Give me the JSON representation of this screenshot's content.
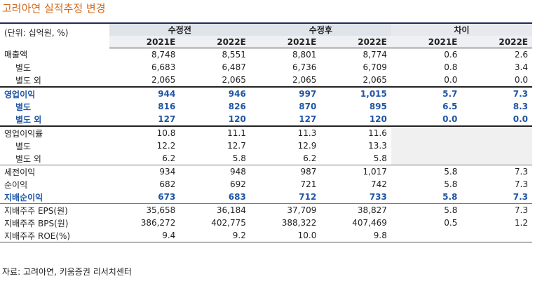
{
  "title": "고려아연 실적추정 변경",
  "unit_label": "(단위: 십억원, %)",
  "groups": [
    "수정전",
    "수정후",
    "차이"
  ],
  "years": [
    "2021E",
    "2022E",
    "2021E",
    "2022E",
    "2021E",
    "2022E"
  ],
  "rows": [
    {
      "label": "매출액",
      "values": [
        "8,748",
        "8,551",
        "8,801",
        "8,774",
        "0.6",
        "2.6"
      ]
    },
    {
      "label": "별도",
      "values": [
        "6,683",
        "6,487",
        "6,736",
        "6,709",
        "0.8",
        "3.4"
      ]
    },
    {
      "label": "별도 외",
      "values": [
        "2,065",
        "2,065",
        "2,065",
        "2,065",
        "0.0",
        "0.0"
      ]
    },
    {
      "label": "영업이익",
      "values": [
        "944",
        "946",
        "997",
        "1,015",
        "5.7",
        "7.3"
      ]
    },
    {
      "label": "별도",
      "values": [
        "816",
        "826",
        "870",
        "895",
        "6.5",
        "8.3"
      ]
    },
    {
      "label": "별도 외",
      "values": [
        "127",
        "120",
        "127",
        "120",
        "0.0",
        "0.0"
      ]
    },
    {
      "label": "영업이익률",
      "values": [
        "10.8",
        "11.1",
        "11.3",
        "11.6",
        "",
        ""
      ]
    },
    {
      "label": "별도",
      "values": [
        "12.2",
        "12.7",
        "12.9",
        "13.3",
        "",
        ""
      ]
    },
    {
      "label": "별도 외",
      "values": [
        "6.2",
        "5.8",
        "6.2",
        "5.8",
        "",
        ""
      ]
    },
    {
      "label": "세전이익",
      "values": [
        "934",
        "948",
        "987",
        "1,017",
        "5.8",
        "7.3"
      ]
    },
    {
      "label": "순이익",
      "values": [
        "682",
        "692",
        "721",
        "742",
        "5.8",
        "7.3"
      ]
    },
    {
      "label": "지배순이익",
      "values": [
        "673",
        "683",
        "712",
        "733",
        "5.8",
        "7.3"
      ]
    },
    {
      "label": "지배주주 EPS(원)",
      "values": [
        "35,658",
        "36,184",
        "37,709",
        "38,827",
        "5.8",
        "7.3"
      ]
    },
    {
      "label": "지배주주 BPS(원)",
      "values": [
        "386,272",
        "402,775",
        "388,322",
        "407,469",
        "0.5",
        "1.2"
      ]
    },
    {
      "label": "지배주주 ROE(%)",
      "values": [
        "9.4",
        "9.2",
        "10.0",
        "9.8",
        "",
        ""
      ]
    }
  ],
  "source": "자료: 고려아연, 키움증권 리서치센터"
}
